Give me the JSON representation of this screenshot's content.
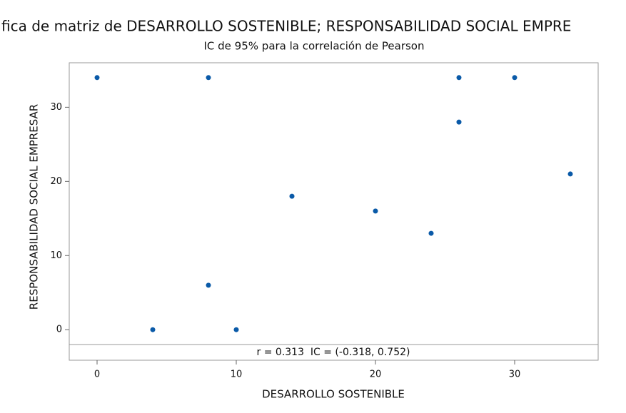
{
  "chart_data": {
    "type": "scatter",
    "title": "fica de matriz de DESARROLLO SOSTENIBLE; RESPONSABILIDAD SOCIAL EMPRE",
    "subtitle": "IC de 95% para la correlación de Pearson",
    "x_label": "DESARROLLO SOSTENIBLE",
    "y_label": "RESPONSABILIDAD SOCIAL EMPRESAR",
    "annotation": "r = 0.313  IC = (-0.318, 0.752)",
    "series": [
      {
        "color": "#0a5aa8",
        "x": [
          0,
          4,
          8,
          8,
          10,
          14,
          20,
          24,
          26,
          26,
          30,
          34
        ],
        "values": [
          34,
          0,
          34,
          6,
          0,
          18,
          16,
          13,
          34,
          28,
          34,
          21
        ]
      }
    ],
    "xlim": [
      -2,
      36
    ],
    "xticks": [
      0,
      10,
      20,
      30
    ],
    "ylim": [
      -2,
      36
    ],
    "yticks": [
      0,
      10,
      20,
      30
    ]
  }
}
